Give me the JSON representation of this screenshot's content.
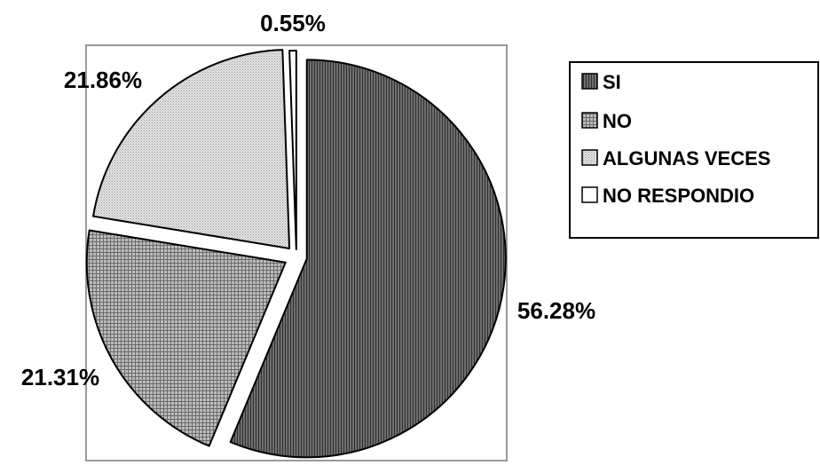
{
  "chart_data": {
    "type": "pie",
    "title": "",
    "categories": [
      "SI",
      "NO",
      "ALGUNAS VECES",
      "NO RESPONDIO"
    ],
    "values": [
      56.28,
      21.31,
      21.86,
      0.55
    ],
    "data_labels": [
      "56.28%",
      "21.31%",
      "21.86%",
      "0.55%"
    ],
    "exploded": true,
    "legend": {
      "position": "right",
      "entries": [
        "SI",
        "NO",
        "ALGUNAS VECES",
        "NO RESPONDIO"
      ]
    },
    "slice_fills": [
      "vertical-hatch-dark",
      "fine-grid",
      "dotted-light",
      "white"
    ]
  }
}
